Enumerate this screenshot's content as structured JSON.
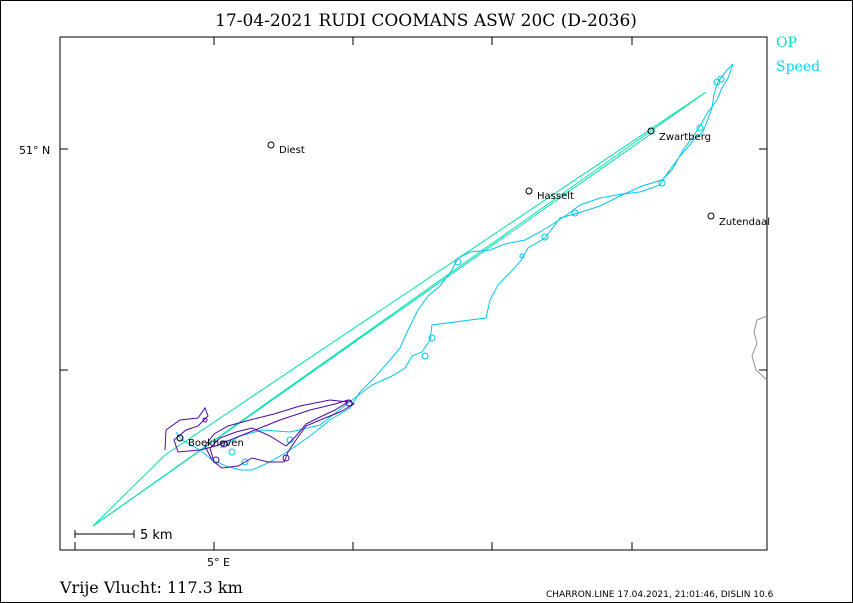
{
  "header": {
    "title": "17-04-2021   RUDI COOMANS   ASW 20C (D-2036)"
  },
  "legend": {
    "items": [
      {
        "label": "OP",
        "color": "#00e0c0"
      },
      {
        "label": "Speed",
        "color": "#00d8ff"
      }
    ]
  },
  "axes": {
    "lat_label": "51° N",
    "lon_label": "5° E"
  },
  "places": [
    {
      "name": "Diest"
    },
    {
      "name": "Hasselt"
    },
    {
      "name": "Zwartberg"
    },
    {
      "name": "Zutendaal"
    },
    {
      "name": "Boekhoven"
    }
  ],
  "scale": {
    "label": "5  km"
  },
  "footer": {
    "distance": "Vrije Vlucht:  117.3 km",
    "credit": "CHARRON.LINE 17.04.2021, 21:01:46, DISLIN 10.6"
  },
  "colors": {
    "track_cyan": "#00c8e8",
    "track_purple": "#4b0aa0",
    "op_line": "#00e0b0",
    "border": "#909090"
  }
}
